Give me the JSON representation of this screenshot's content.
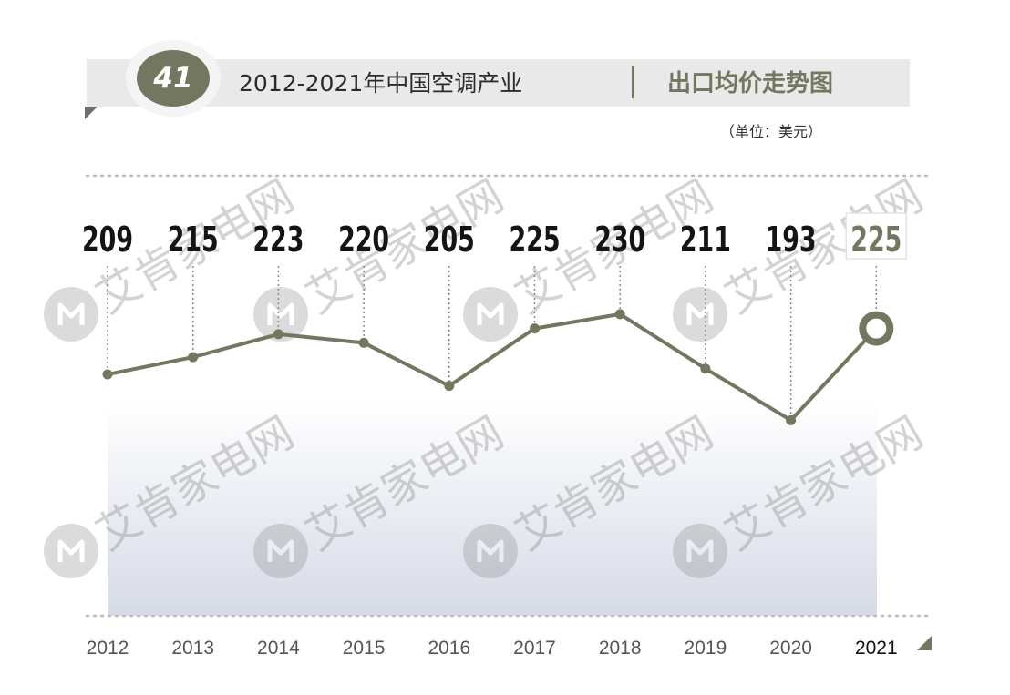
{
  "header": {
    "badge_number": "41",
    "title_left": "2012-2021年中国空调产业",
    "title_right": "出口均价走势图",
    "unit": "（单位：美元）"
  },
  "watermark": {
    "text": "艾肯家电网",
    "logo_icon": "aiken-logo-icon"
  },
  "colors": {
    "accent": "#73775f",
    "label_text": "#141414",
    "year_text": "#555555",
    "header_bg": "#e9e9e9",
    "area_top": "#ffffff",
    "area_bottom": "#d6dae6"
  },
  "chart_data": {
    "type": "line",
    "title": "2012-2021年中国空调产业 出口均价走势图",
    "ylabel": "单位：美元",
    "categories": [
      "2012",
      "2013",
      "2014",
      "2015",
      "2016",
      "2017",
      "2018",
      "2019",
      "2020",
      "2021"
    ],
    "values": [
      209,
      215,
      223,
      220,
      205,
      225,
      230,
      211,
      193,
      225
    ],
    "data_labels": [
      "209",
      "215",
      "223",
      "220",
      "205",
      "225",
      "230",
      "211",
      "193",
      "225"
    ],
    "highlight_index": 9,
    "grid": false
  }
}
